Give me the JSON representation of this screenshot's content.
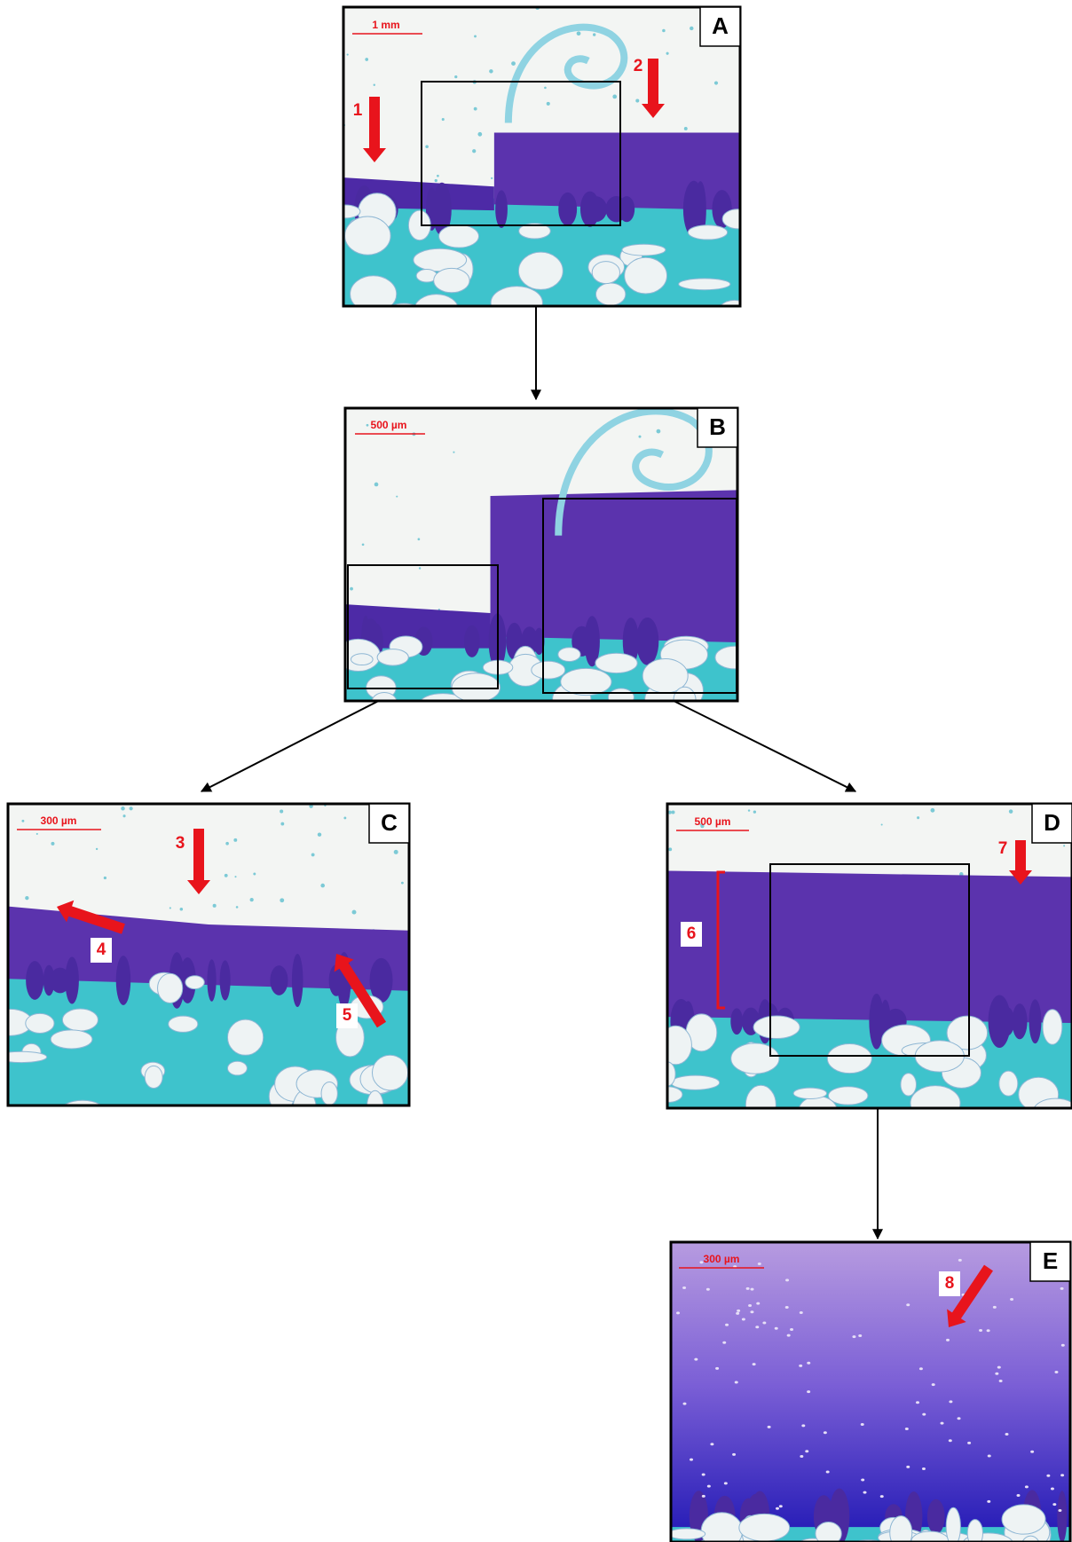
{
  "panels": [
    {
      "letter": "A",
      "scale_bar": "1 mm",
      "annotations": [
        "1",
        "2"
      ]
    },
    {
      "letter": "B",
      "scale_bar": "500 µm",
      "annotations": []
    },
    {
      "letter": "C",
      "scale_bar": "300 µm",
      "annotations": [
        "3",
        "4",
        "5"
      ]
    },
    {
      "letter": "D",
      "scale_bar": "500 µm",
      "annotations": [
        "6",
        "7"
      ]
    },
    {
      "letter": "E",
      "scale_bar": "300 µm",
      "annotations": [
        "8"
      ]
    }
  ]
}
